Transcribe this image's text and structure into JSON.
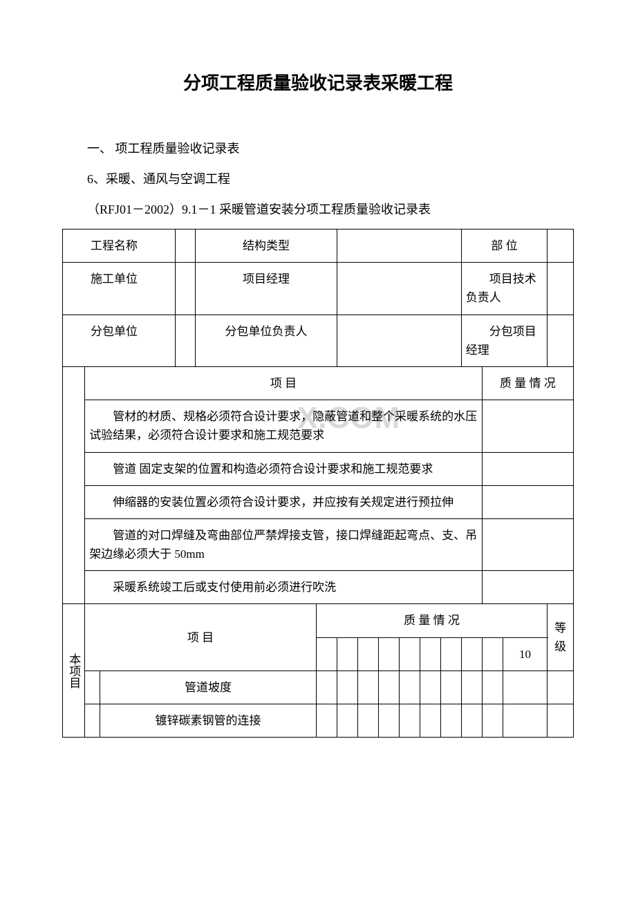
{
  "title": "分项工程质量验收记录表采暖工程",
  "intro": {
    "line1": "一、 项工程质量验收记录表",
    "line2": "6、采暖、通风与空调工程",
    "line3": "（RFJ01－2002）9.1－1 采暖管道安装分项工程质量验收记录表"
  },
  "header_rows": {
    "r1c1": "工程名称",
    "r1c3": "结构类型",
    "r1c5": "部 位",
    "r2c1": "施工单位",
    "r2c3": "项目经理",
    "r2c5": "项目技术负责人",
    "r3c1": "分包单位",
    "r3c3": "分包单位负责人",
    "r3c5": "分包项目经理"
  },
  "section1": {
    "col_project": "项 目",
    "col_quality": "质 量 情 况",
    "rows": [
      "管材的材质、规格必须符合设计要求，隐蔽管道和整个采暖系统的水压试验结果，必须符合设计要求和施工规范要求",
      "管道 固定支架的位置和构造必须符合设计要求和施工规范要求",
      "伸缩器的安装位置必须符合设计要求，并应按有关规定进行预拉伸",
      "管道的对口焊缝及弯曲部位严禁焊接支管，接口焊缝距起弯点、支、吊架边缘必须大于 50mm",
      "采暖系统竣工后或支付使用前必须进行吹洗"
    ]
  },
  "section2": {
    "col_project": "项 目",
    "col_quality": "质 量 情 况",
    "col_10": "10",
    "col_grade": "等级",
    "side_label": "本项目",
    "rows": [
      "管道坡度",
      "镀锌碳素钢管的连接"
    ]
  },
  "watermark": "X.COM",
  "colors": {
    "text": "#000000",
    "border": "#000000",
    "background": "#ffffff",
    "watermark": "#d9d9d9"
  }
}
